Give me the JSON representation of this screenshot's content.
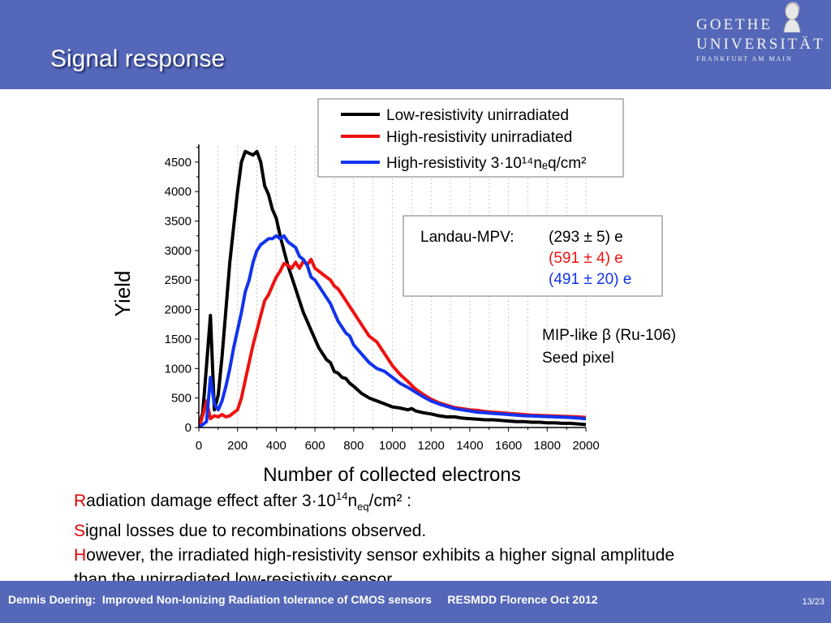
{
  "slide": {
    "title": "Signal response",
    "page": "13/23"
  },
  "logo": {
    "line1": "GOETHE",
    "line2": "UNIVERSITÄT",
    "line3": "FRANKFURT AM MAIN"
  },
  "chart_data": {
    "type": "line",
    "xlabel": "Number of collected electrons",
    "ylabel": "Yield",
    "xlim": [
      0,
      2000
    ],
    "ylim": [
      0,
      4800
    ],
    "xticks": [
      0,
      200,
      400,
      600,
      800,
      1000,
      1200,
      1400,
      1600,
      1800,
      2000
    ],
    "yticks": [
      0,
      500,
      1000,
      1500,
      2000,
      2500,
      3000,
      3500,
      4000,
      4500
    ],
    "grid": "vertical dotted lines",
    "legend_position": "top-right",
    "series": [
      {
        "name": "Low-resistivity unirradiated",
        "color": "#000000",
        "x": [
          0,
          20,
          40,
          60,
          80,
          100,
          120,
          140,
          160,
          180,
          200,
          220,
          240,
          260,
          280,
          300,
          320,
          340,
          360,
          380,
          400,
          420,
          440,
          460,
          480,
          500,
          520,
          540,
          560,
          580,
          600,
          620,
          640,
          660,
          680,
          700,
          720,
          740,
          760,
          780,
          800,
          840,
          880,
          920,
          960,
          1000,
          1040,
          1080,
          1100,
          1120,
          1160,
          1200,
          1240,
          1280,
          1320,
          1360,
          1400,
          1440,
          1480,
          1520,
          1560,
          1600,
          1640,
          1680,
          1720,
          1760,
          1800,
          1840,
          1880,
          1920,
          1960,
          2000
        ],
        "y": [
          0,
          250,
          1050,
          1900,
          300,
          550,
          1200,
          2000,
          2800,
          3400,
          4000,
          4500,
          4680,
          4650,
          4620,
          4680,
          4500,
          4100,
          3950,
          3700,
          3550,
          3250,
          3000,
          2750,
          2550,
          2350,
          2150,
          1950,
          1800,
          1650,
          1500,
          1350,
          1250,
          1150,
          1100,
          950,
          920,
          850,
          830,
          750,
          700,
          580,
          500,
          450,
          400,
          350,
          330,
          300,
          320,
          280,
          250,
          230,
          200,
          180,
          180,
          160,
          150,
          140,
          130,
          130,
          120,
          110,
          100,
          100,
          90,
          90,
          80,
          80,
          70,
          70,
          60,
          50
        ]
      },
      {
        "name": "High-resistivity unirradiated",
        "color": "#ee1111",
        "x": [
          0,
          20,
          40,
          60,
          80,
          100,
          120,
          140,
          160,
          180,
          200,
          220,
          240,
          260,
          280,
          300,
          320,
          340,
          360,
          380,
          400,
          420,
          440,
          460,
          480,
          500,
          520,
          540,
          560,
          580,
          600,
          620,
          640,
          660,
          680,
          700,
          720,
          740,
          760,
          780,
          800,
          840,
          880,
          920,
          960,
          1000,
          1040,
          1080,
          1120,
          1160,
          1200,
          1240,
          1280,
          1320,
          1360,
          1400,
          1440,
          1480,
          1520,
          1560,
          1600,
          1640,
          1680,
          1720,
          1760,
          1800,
          1840,
          1880,
          1920,
          1960,
          2000
        ],
        "y": [
          0,
          200,
          450,
          150,
          200,
          180,
          220,
          180,
          200,
          250,
          300,
          500,
          800,
          1100,
          1400,
          1650,
          1900,
          2150,
          2250,
          2400,
          2550,
          2650,
          2780,
          2750,
          2700,
          2800,
          2700,
          2820,
          2760,
          2850,
          2700,
          2650,
          2600,
          2550,
          2500,
          2400,
          2350,
          2250,
          2150,
          2050,
          1950,
          1750,
          1550,
          1450,
          1250,
          1050,
          900,
          780,
          650,
          560,
          480,
          420,
          380,
          340,
          320,
          300,
          290,
          270,
          260,
          250,
          240,
          230,
          220,
          210,
          205,
          200,
          195,
          190,
          185,
          180,
          170
        ]
      },
      {
        "name": "High-resistivity 3·10¹⁴nₑq/cm²",
        "color": "#1133ee",
        "x": [
          0,
          20,
          40,
          60,
          80,
          100,
          120,
          140,
          160,
          180,
          200,
          220,
          240,
          260,
          280,
          300,
          320,
          340,
          360,
          380,
          400,
          420,
          440,
          460,
          480,
          500,
          520,
          540,
          560,
          580,
          600,
          620,
          640,
          660,
          680,
          700,
          720,
          740,
          760,
          780,
          800,
          840,
          880,
          920,
          960,
          1000,
          1040,
          1080,
          1120,
          1160,
          1200,
          1240,
          1280,
          1320,
          1360,
          1400,
          1440,
          1480,
          1520,
          1560,
          1600,
          1640,
          1680,
          1720,
          1760,
          1800,
          1840,
          1880,
          1920,
          1960,
          2000
        ],
        "y": [
          0,
          50,
          100,
          850,
          400,
          300,
          450,
          700,
          1000,
          1350,
          1650,
          1950,
          2300,
          2500,
          2800,
          3000,
          3100,
          3150,
          3200,
          3200,
          3250,
          3200,
          3250,
          3150,
          3100,
          3050,
          2900,
          2850,
          2750,
          2550,
          2500,
          2400,
          2300,
          2200,
          2100,
          1950,
          1800,
          1700,
          1600,
          1550,
          1400,
          1250,
          1100,
          1000,
          950,
          850,
          750,
          680,
          600,
          520,
          450,
          400,
          360,
          320,
          300,
          280,
          260,
          250,
          240,
          230,
          220,
          210,
          200,
          195,
          190,
          185,
          180,
          175,
          170,
          160,
          150
        ]
      }
    ],
    "annotations": {
      "landau_label": "Landau-MPV:",
      "landau_values": [
        "(293 ± 5) e",
        "(591 ± 4) e",
        "(491 ± 20) e"
      ],
      "source_line1": "MIP-like β (Ru-106)",
      "source_line2": "Seed pixel"
    }
  },
  "text": {
    "line1_initial": "R",
    "line1_pre": "adiation damage effect after 3·10",
    "line1_sup": "14",
    "line1_n": "n",
    "line1_sub": "eq",
    "line1_post": "/cm² :",
    "line2_initial": "S",
    "line2_rest": "ignal losses due to recombinations observed.",
    "line3_initial": "H",
    "line3_rest": "owever, the irradiated high-resistivity sensor exhibits a higher signal amplitude",
    "line4": "than the unirradiated low-resistivity sensor."
  },
  "footer": {
    "text": "Dennis Doering:  Improved Non-Ionizing Radiation tolerance of CMOS sensors     RESMDD Florence Oct 2012"
  }
}
